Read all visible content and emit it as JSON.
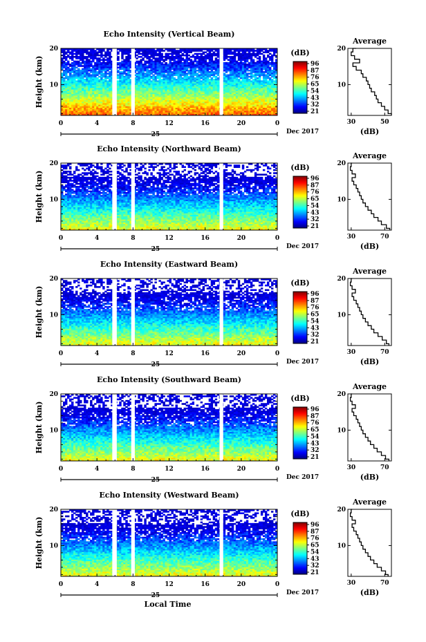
{
  "chart_data": [
    {
      "type": "heatmap",
      "title": "Echo Intensity (Vertical Beam)",
      "ylabel": "Height (km)",
      "xticks": [
        "0",
        "4",
        "8",
        "12",
        "16",
        "20",
        "0"
      ],
      "yticks": [
        "20",
        "10"
      ],
      "xlim": [
        0,
        24
      ],
      "ylim": [
        1.5,
        20
      ],
      "date_label": "25",
      "month_year": "Dec 2017",
      "colorbar": {
        "label": "(dB)",
        "ticks": [
          "96",
          "87",
          "76",
          "65",
          "54",
          "43",
          "32",
          "21"
        ]
      },
      "gaps_hours": [
        [
          5.7,
          6.2
        ],
        [
          7.8,
          8.2
        ],
        [
          17.6,
          18.0
        ]
      ],
      "average": {
        "title": "Average",
        "xlabel": "(dB)",
        "xticks": [
          "30",
          "50"
        ],
        "xlim": [
          28,
          54
        ],
        "height_km": [
          1.5,
          2,
          3,
          4,
          5,
          6,
          7,
          8,
          9,
          10,
          11,
          12,
          13,
          14,
          15,
          16,
          17,
          18,
          19,
          20
        ],
        "values_db": [
          54,
          52,
          50,
          48,
          46,
          45,
          44,
          42,
          41,
          40,
          39,
          37,
          36,
          33,
          31,
          35,
          32,
          30,
          31,
          33
        ]
      }
    },
    {
      "type": "heatmap",
      "title": "Echo Intensity (Northward Beam)",
      "ylabel": "Height (km)",
      "xticks": [
        "0",
        "4",
        "8",
        "12",
        "16",
        "20",
        "0"
      ],
      "yticks": [
        "20",
        "10"
      ],
      "xlim": [
        0,
        24
      ],
      "ylim": [
        1.5,
        20
      ],
      "date_label": "25",
      "month_year": "Dec 2017",
      "colorbar": {
        "label": "(dB)",
        "ticks": [
          "96",
          "87",
          "76",
          "65",
          "54",
          "43",
          "32",
          "21"
        ]
      },
      "gaps_hours": [
        [
          5.7,
          6.2
        ],
        [
          7.8,
          8.2
        ],
        [
          17.6,
          18.0
        ]
      ],
      "average": {
        "title": "Average",
        "xlabel": "(dB)",
        "xticks": [
          "30",
          "70"
        ],
        "xlim": [
          26,
          78
        ],
        "height_km": [
          1.5,
          2,
          3,
          4,
          5,
          6,
          7,
          8,
          9,
          10,
          11,
          12,
          13,
          14,
          15,
          16,
          17,
          18,
          19,
          20
        ],
        "values_db": [
          76,
          72,
          66,
          62,
          57,
          54,
          50,
          47,
          44,
          42,
          40,
          38,
          36,
          33,
          31,
          35,
          31,
          29,
          30,
          31
        ]
      }
    },
    {
      "type": "heatmap",
      "title": "Echo Intensity (Eastward Beam)",
      "ylabel": "Height (km)",
      "xticks": [
        "0",
        "4",
        "8",
        "12",
        "16",
        "20",
        "0"
      ],
      "yticks": [
        "20",
        "10"
      ],
      "xlim": [
        0,
        24
      ],
      "ylim": [
        1.5,
        20
      ],
      "date_label": "25",
      "month_year": "Dec 2017",
      "colorbar": {
        "label": "(dB)",
        "ticks": [
          "96",
          "87",
          "76",
          "65",
          "54",
          "43",
          "32",
          "21"
        ]
      },
      "gaps_hours": [
        [
          5.7,
          6.2
        ],
        [
          7.8,
          8.2
        ],
        [
          17.6,
          18.0
        ]
      ],
      "average": {
        "title": "Average",
        "xlabel": "(dB)",
        "xticks": [
          "30",
          "70"
        ],
        "xlim": [
          26,
          78
        ],
        "height_km": [
          1.5,
          2,
          3,
          4,
          5,
          6,
          7,
          8,
          9,
          10,
          11,
          12,
          13,
          14,
          15,
          16,
          17,
          18,
          19,
          20
        ],
        "values_db": [
          75,
          72,
          67,
          62,
          57,
          54,
          50,
          47,
          44,
          42,
          40,
          38,
          36,
          33,
          31,
          35,
          31,
          29,
          30,
          31
        ]
      }
    },
    {
      "type": "heatmap",
      "title": "Echo Intensity (Southward Beam)",
      "ylabel": "Height (km)",
      "xticks": [
        "0",
        "4",
        "8",
        "12",
        "16",
        "20",
        "0"
      ],
      "yticks": [
        "20",
        "10"
      ],
      "xlim": [
        0,
        24
      ],
      "ylim": [
        1.5,
        20
      ],
      "date_label": "25",
      "month_year": "Dec 2017",
      "colorbar": {
        "label": "(dB)",
        "ticks": [
          "96",
          "87",
          "76",
          "65",
          "54",
          "43",
          "32",
          "21"
        ]
      },
      "gaps_hours": [
        [
          5.7,
          6.2
        ],
        [
          7.8,
          8.2
        ],
        [
          17.6,
          18.0
        ]
      ],
      "average": {
        "title": "Average",
        "xlabel": "(dB)",
        "xticks": [
          "30",
          "70"
        ],
        "xlim": [
          26,
          78
        ],
        "height_km": [
          1.5,
          2,
          3,
          4,
          5,
          6,
          7,
          8,
          9,
          10,
          11,
          12,
          13,
          14,
          15,
          16,
          17,
          18,
          19,
          20
        ],
        "values_db": [
          75,
          71,
          66,
          61,
          57,
          53,
          50,
          47,
          44,
          42,
          40,
          38,
          36,
          33,
          31,
          35,
          31,
          29,
          30,
          31
        ]
      }
    },
    {
      "type": "heatmap",
      "title": "Echo Intensity (Westward Beam)",
      "ylabel": "Height (km)",
      "xticks": [
        "0",
        "4",
        "8",
        "12",
        "16",
        "20",
        "0"
      ],
      "yticks": [
        "20",
        "10"
      ],
      "xlim": [
        0,
        24
      ],
      "ylim": [
        1.5,
        20
      ],
      "date_label": "25",
      "month_year": "Dec 2017",
      "xlabel": "Local Time",
      "colorbar": {
        "label": "(dB)",
        "ticks": [
          "96",
          "87",
          "76",
          "65",
          "54",
          "43",
          "32",
          "21"
        ]
      },
      "gaps_hours": [
        [
          5.7,
          6.2
        ],
        [
          7.8,
          8.2
        ],
        [
          17.6,
          18.0
        ]
      ],
      "average": {
        "title": "Average",
        "xlabel": "(dB)",
        "xticks": [
          "30",
          "70"
        ],
        "xlim": [
          26,
          78
        ],
        "height_km": [
          1.5,
          2,
          3,
          4,
          5,
          6,
          7,
          8,
          9,
          10,
          11,
          12,
          13,
          14,
          15,
          16,
          17,
          18,
          19,
          20
        ],
        "values_db": [
          74,
          71,
          66,
          61,
          57,
          53,
          50,
          47,
          44,
          42,
          40,
          38,
          36,
          33,
          31,
          35,
          31,
          29,
          30,
          31
        ]
      }
    }
  ]
}
